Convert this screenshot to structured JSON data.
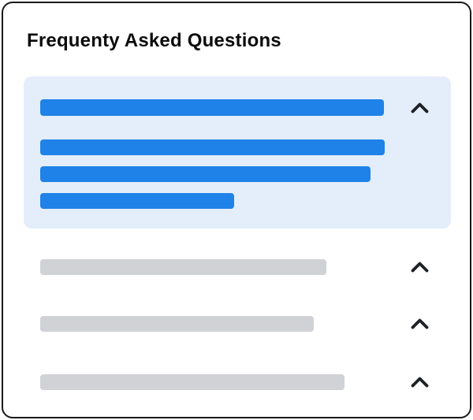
{
  "header": {
    "title": "Frequenty Asked Questions"
  },
  "colors": {
    "accent_blue": "#1E82E8",
    "expanded_bg": "#E4EEFB",
    "skeleton_gray": "#D0D2D6",
    "icon_dark": "#1E2126",
    "frame_border": "#191919",
    "card_bg": "#FFFFFF"
  },
  "faq": {
    "items": [
      {
        "index": 1,
        "state": "expanded",
        "toggle_icon": "chevron-up",
        "question_bar_width": 436,
        "answer_bar_widths": [
          437,
          419,
          246
        ]
      },
      {
        "index": 2,
        "state": "collapsed",
        "toggle_icon": "chevron-up",
        "question_bar_width": 363
      },
      {
        "index": 3,
        "state": "collapsed",
        "toggle_icon": "chevron-up",
        "question_bar_width": 347
      },
      {
        "index": 4,
        "state": "collapsed",
        "toggle_icon": "chevron-up",
        "question_bar_width": 386
      }
    ]
  }
}
